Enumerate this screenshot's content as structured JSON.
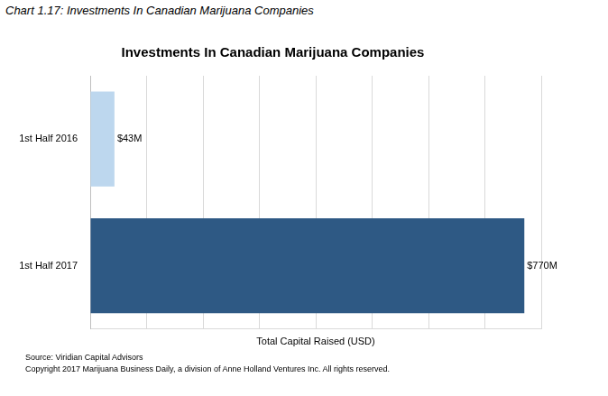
{
  "chart_data": {
    "type": "bar",
    "caption": "Chart 1.17: Investments In Canadian Marijuana Companies",
    "title": "Investments In Canadian Marijuana Companies",
    "x_label": "Total Capital Raised (USD)",
    "source": "Source: Viridian Capital Advisors",
    "copyright": "Copyright 2017 Marijuana Business Daily, a division of Anne Holland Ventures Inc. All rights reserved.",
    "orientation": "horizontal",
    "categories": [
      "1st Half 2016",
      "1st Half 2017"
    ],
    "values": [
      43000000,
      770000000
    ],
    "value_labels": [
      "$43M",
      "$770M"
    ],
    "colors": [
      "#bdd7ee",
      "#2e5984"
    ],
    "xlim": [
      0,
      800000000
    ],
    "xticks": [
      0,
      100000000,
      200000000,
      300000000,
      400000000,
      500000000,
      600000000,
      700000000,
      800000000
    ],
    "grid": true,
    "data_labels": true,
    "tick_labels": "y"
  }
}
